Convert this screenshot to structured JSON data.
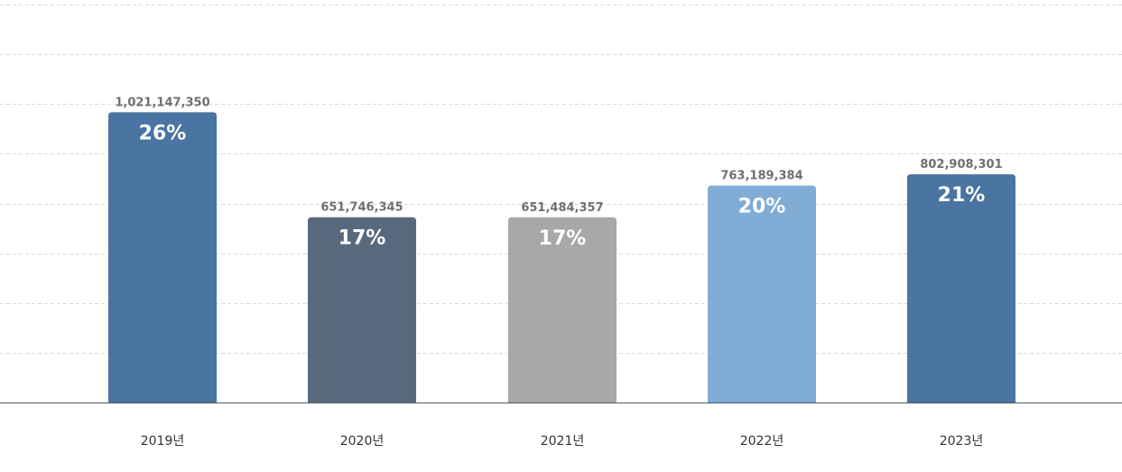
{
  "chart_data": {
    "type": "bar",
    "title": "",
    "xlabel": "",
    "ylabel": "",
    "categories": [
      "2019년",
      "2020년",
      "2021년",
      "2022년",
      "2023년"
    ],
    "values": [
      1021147350,
      651746345,
      651484357,
      763189384,
      802908301
    ],
    "value_labels": [
      "1,021,147,350",
      "651,746,345",
      "651,484,357",
      "763,189,384",
      "802,908,301"
    ],
    "percent_labels": [
      "26%",
      "17%",
      "17%",
      "20%",
      "21%"
    ],
    "bar_colors": [
      "#4a74a1",
      "#58697d",
      "#a8a8a8",
      "#80acd5",
      "#4a74a1"
    ],
    "ylim": [
      0,
      1400000000
    ],
    "grid": true,
    "grid_style": "dashed",
    "legend": "none"
  }
}
